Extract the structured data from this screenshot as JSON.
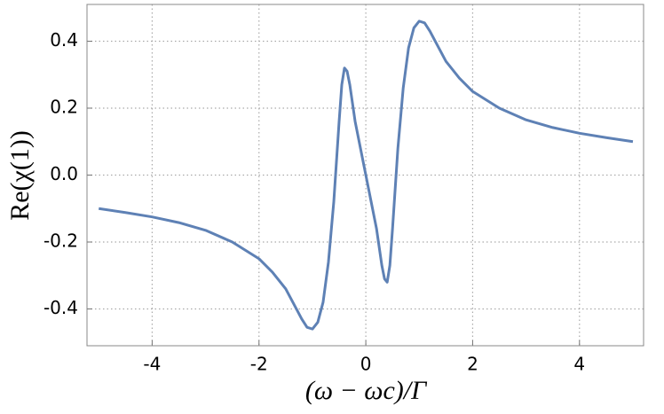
{
  "chart_data": {
    "type": "line",
    "x_label": "(ω − ωc)/Γ",
    "y_label": "Re(χ(1))",
    "x": [
      -5,
      -4.5,
      -4,
      -3.5,
      -3,
      -2.5,
      -2,
      -1.75,
      -1.5,
      -1.3,
      -1.2,
      -1.1,
      -1.0,
      -0.9,
      -0.8,
      -0.7,
      -0.6,
      -0.5,
      -0.45,
      -0.4,
      -0.35,
      -0.3,
      -0.2,
      -0.1,
      0,
      0.1,
      0.2,
      0.3,
      0.35,
      0.4,
      0.45,
      0.5,
      0.6,
      0.7,
      0.8,
      0.9,
      1.0,
      1.1,
      1.2,
      1.3,
      1.5,
      1.75,
      2,
      2.5,
      3,
      3.5,
      4,
      4.5,
      5
    ],
    "series": [
      {
        "name": "Re",
        "color": "#5e81b5",
        "values": [
          -0.1,
          -0.112,
          -0.125,
          -0.142,
          -0.165,
          -0.2,
          -0.25,
          -0.29,
          -0.34,
          -0.4,
          -0.43,
          -0.455,
          -0.46,
          -0.44,
          -0.38,
          -0.26,
          -0.08,
          0.16,
          0.27,
          0.32,
          0.31,
          0.27,
          0.16,
          0.08,
          0,
          -0.08,
          -0.16,
          -0.27,
          -0.31,
          -0.32,
          -0.27,
          -0.16,
          0.08,
          0.26,
          0.38,
          0.44,
          0.46,
          0.455,
          0.43,
          0.4,
          0.34,
          0.29,
          0.25,
          0.2,
          0.165,
          0.142,
          0.125,
          0.112,
          0.1
        ]
      }
    ],
    "xlim": [
      -5.22,
      5.2
    ],
    "ylim": [
      -0.51,
      0.51
    ],
    "xticks": [
      -4,
      -2,
      0,
      2,
      4
    ],
    "yticks": [
      0.4,
      0.2,
      {
        "value": 0,
        "label": "0.0"
      },
      -0.2,
      -0.4
    ],
    "grid": true
  }
}
